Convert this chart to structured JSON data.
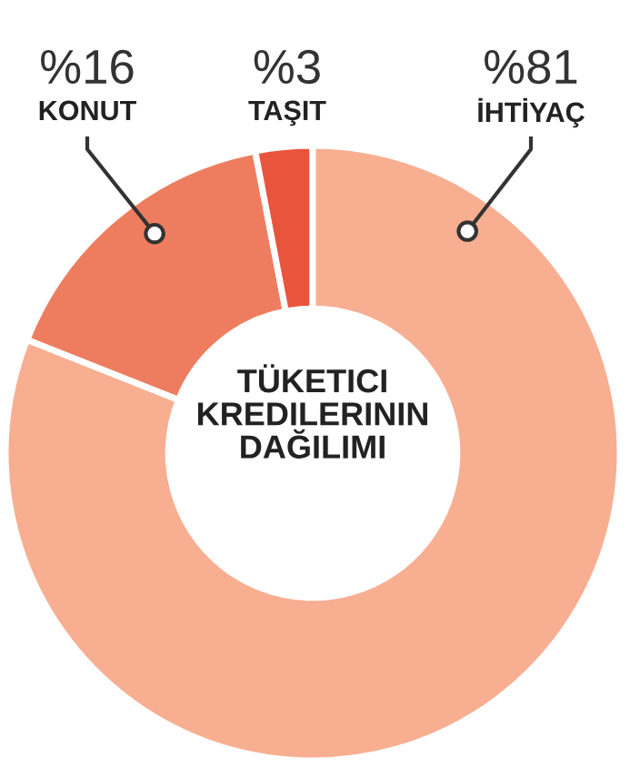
{
  "chart_data": {
    "type": "donut",
    "title": "TÜKETICI\nKREDILERININ\nDAĞILIMI",
    "categories": [
      "KONUT",
      "TAŞIT",
      "İHTİYAÇ"
    ],
    "values": [
      16,
      3,
      81
    ],
    "colors": [
      "#ee7d5f",
      "#e9553c",
      "#f8ae91"
    ],
    "value_labels": [
      "%16",
      "%3",
      "%81"
    ]
  }
}
